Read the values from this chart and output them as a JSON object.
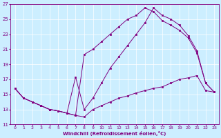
{
  "xlabel": "Windchill (Refroidissement éolien,°C)",
  "bg_color": "#cceeff",
  "line_color": "#800080",
  "xlim": [
    -0.5,
    23.5
  ],
  "ylim": [
    11,
    27
  ],
  "xticks": [
    0,
    1,
    2,
    3,
    4,
    5,
    6,
    7,
    8,
    9,
    10,
    11,
    12,
    13,
    14,
    15,
    16,
    17,
    18,
    19,
    20,
    21,
    22,
    23
  ],
  "yticks": [
    11,
    13,
    15,
    17,
    19,
    21,
    23,
    25,
    27
  ],
  "line1_x": [
    0,
    1,
    2,
    3,
    4,
    5,
    6,
    7,
    8,
    9,
    10,
    11,
    12,
    13,
    14,
    15,
    16,
    17,
    18,
    19,
    20,
    21,
    22,
    23
  ],
  "line1_y": [
    15.8,
    14.5,
    14.0,
    13.5,
    13.0,
    12.8,
    12.5,
    12.2,
    12.0,
    13.0,
    13.5,
    14.0,
    14.5,
    14.8,
    15.2,
    15.5,
    15.8,
    16.0,
    16.5,
    17.0,
    17.2,
    17.5,
    15.5,
    15.3
  ],
  "line2_x": [
    0,
    1,
    2,
    3,
    4,
    5,
    6,
    7,
    8,
    9,
    10,
    11,
    12,
    13,
    14,
    15,
    16,
    17,
    18,
    19,
    20,
    21,
    22,
    23
  ],
  "line2_y": [
    15.8,
    14.5,
    14.0,
    13.5,
    13.0,
    12.8,
    12.5,
    12.2,
    20.3,
    21.0,
    22.0,
    23.0,
    24.0,
    25.0,
    25.5,
    26.5,
    26.0,
    24.8,
    24.2,
    23.5,
    22.5,
    20.5,
    16.5,
    15.3
  ],
  "line3_x": [
    0,
    1,
    2,
    3,
    4,
    5,
    6,
    7,
    8,
    9,
    10,
    11,
    12,
    13,
    14,
    15,
    16,
    17,
    18,
    19,
    20,
    21,
    22,
    23
  ],
  "line3_y": [
    15.8,
    14.5,
    14.0,
    13.5,
    13.0,
    12.8,
    12.5,
    17.3,
    13.0,
    14.5,
    16.5,
    18.5,
    20.0,
    21.5,
    23.0,
    24.5,
    26.5,
    25.5,
    25.0,
    24.2,
    22.8,
    20.8,
    16.5,
    15.3
  ]
}
